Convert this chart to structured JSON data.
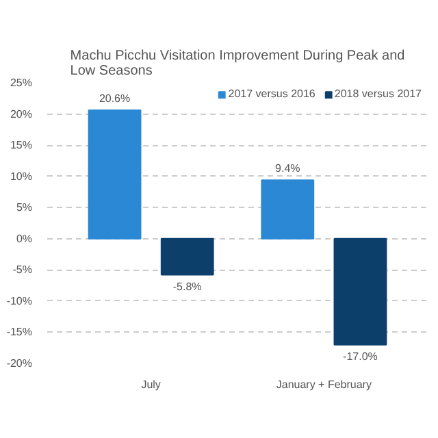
{
  "chart_data": {
    "type": "bar",
    "title": "Machu Picchu Visitation Improvement During Peak and Low Seasons",
    "categories": [
      "July",
      "January + February"
    ],
    "series": [
      {
        "name": "2017 versus 2016",
        "color": "#2a88d4",
        "values": [
          20.6,
          9.4
        ],
        "value_labels": [
          "20.6%",
          "9.4%"
        ]
      },
      {
        "name": "2018 versus 2017",
        "color": "#0d3f6b",
        "values": [
          -5.8,
          -17.0
        ],
        "value_labels": [
          "-5.8%",
          "-17.0%"
        ]
      }
    ],
    "ylim": [
      -20,
      25
    ],
    "yticks": [
      {
        "value": -20,
        "label": "-20%"
      },
      {
        "value": -15,
        "label": "-15%"
      },
      {
        "value": -10,
        "label": "-10%"
      },
      {
        "value": -5,
        "label": "-5%"
      },
      {
        "value": 0,
        "label": "0%"
      },
      {
        "value": 5,
        "label": "5%"
      },
      {
        "value": 10,
        "label": "10%"
      },
      {
        "value": 15,
        "label": "15%"
      },
      {
        "value": 20,
        "label": "20%"
      },
      {
        "value": 25,
        "label": "25%"
      }
    ],
    "grid": "y",
    "legend": "top right"
  }
}
